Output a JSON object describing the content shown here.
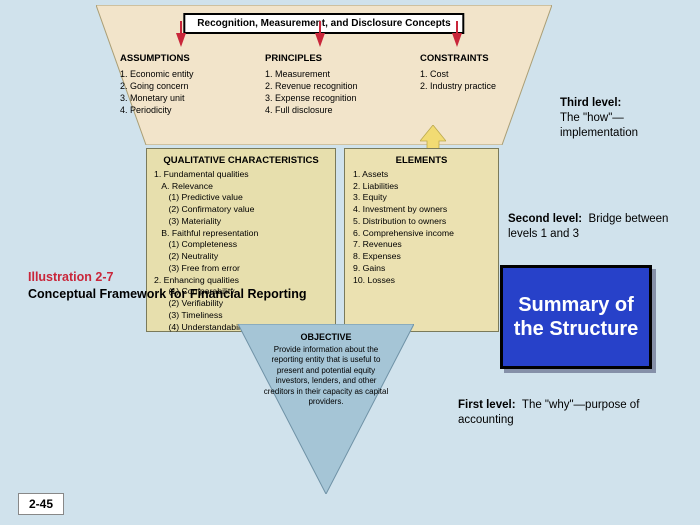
{
  "type": "infographic",
  "background_color": "#d0e2ec",
  "levels": {
    "third": {
      "label_bold": "Third level:",
      "label_rest": "The \"how\"—implementation",
      "panel": {
        "bg_color": "#f2e4ca",
        "border_color": "#aa9e75",
        "title": "Recognition, Measurement, and Disclosure Concepts",
        "arrow_color": "#c9263a",
        "columns": [
          {
            "heading": "ASSUMPTIONS",
            "items": [
              "1. Economic entity",
              "2. Going concern",
              "3. Monetary unit",
              "4. Periodicity"
            ]
          },
          {
            "heading": "PRINCIPLES",
            "items": [
              "1. Measurement",
              "2. Revenue recognition",
              "3. Expense recognition",
              "4. Full disclosure"
            ]
          },
          {
            "heading": "CONSTRAINTS",
            "items": [
              "1. Cost",
              "2. Industry practice"
            ]
          }
        ]
      }
    },
    "second": {
      "label_bold": "Second level:",
      "label_rest": "Bridge between levels 1 and 3",
      "panels": {
        "qualitative": {
          "bg_color": "#e7dfad",
          "title": "QUALITATIVE CHARACTERISTICS",
          "items_html": "1. Fundamental qualities<br>&nbsp;&nbsp;&nbsp;A. Relevance<br>&nbsp;&nbsp;&nbsp;&nbsp;&nbsp;&nbsp;(1) Predictive value<br>&nbsp;&nbsp;&nbsp;&nbsp;&nbsp;&nbsp;(2) Confirmatory value<br>&nbsp;&nbsp;&nbsp;&nbsp;&nbsp;&nbsp;(3) Materiality<br>&nbsp;&nbsp;&nbsp;B. Faithful representation<br>&nbsp;&nbsp;&nbsp;&nbsp;&nbsp;&nbsp;(1) Completeness<br>&nbsp;&nbsp;&nbsp;&nbsp;&nbsp;&nbsp;(2) Neutrality<br>&nbsp;&nbsp;&nbsp;&nbsp;&nbsp;&nbsp;(3) Free from error<br>2. Enhancing qualities<br>&nbsp;&nbsp;&nbsp;&nbsp;&nbsp;&nbsp;(1) Comparability<br>&nbsp;&nbsp;&nbsp;&nbsp;&nbsp;&nbsp;(2) Verifiability<br>&nbsp;&nbsp;&nbsp;&nbsp;&nbsp;&nbsp;(3) Timeliness<br>&nbsp;&nbsp;&nbsp;&nbsp;&nbsp;&nbsp;(4) Understandability"
        },
        "elements": {
          "bg_color": "#ebe1b1",
          "title": "ELEMENTS",
          "items_html": "1. Assets<br>2. Liabilities<br>3. Equity<br>4. Investment by owners<br>5. Distribution to owners<br>6. Comprehensive income<br>7. Revenues<br>8. Expenses<br>9. Gains<br>10. Losses"
        }
      },
      "up_arrow_color": "#f2db73"
    },
    "first": {
      "label_bold": "First level:",
      "label_rest": "The \"why\"—purpose of accounting",
      "panel": {
        "bg_color": "#a5c5d6",
        "title": "OBJECTIVE",
        "body": "Provide information about the reporting entity that is useful to present and potential equity investors, lenders, and other creditors in their capacity as capital providers."
      }
    }
  },
  "summary_box": {
    "text": "Summary of the Structure",
    "bg_color": "#2741c9",
    "text_color": "#ffffff",
    "shadow_color": "#8590a8"
  },
  "illustration": {
    "number": "Illustration 2-7",
    "title": "Conceptual Framework for Financial Reporting",
    "number_color": "#c9263a"
  },
  "slide_number": "2-45"
}
